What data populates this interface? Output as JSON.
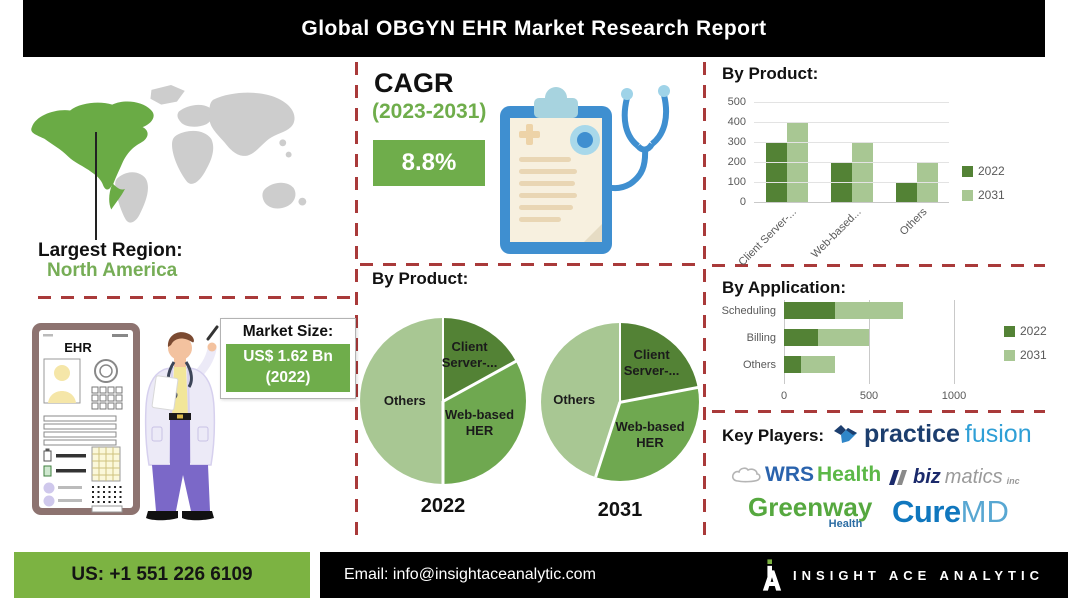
{
  "header": {
    "title": "Global OBGYN EHR Market Research Report"
  },
  "largest_region": {
    "label": "Largest Region:",
    "value": "North America"
  },
  "cagr": {
    "label": "CAGR",
    "period": "(2023-2031)",
    "value": "8.8%"
  },
  "market_size": {
    "label": "Market Size:",
    "line1": "US$ 1.62 Bn",
    "line2": "(2022)"
  },
  "device": {
    "screen_title": "EHR"
  },
  "key_players": {
    "label": "Key Players:",
    "practice_fusion": {
      "part1": "practice",
      "part2": "fusion"
    },
    "wrs_health": {
      "part1": "WRS",
      "part2": "Health"
    },
    "bizmatics": {
      "part1": "biz",
      "part2": "matics",
      "part3": "inc"
    },
    "greenway": {
      "part1": "Greenway",
      "part2": "Health"
    },
    "curemd": {
      "part1": "Cure",
      "part2": "MD"
    }
  },
  "footer": {
    "phone": "US: +1 551 226 6109",
    "email": "Email: info@insightaceanalytic.com",
    "brand": "INSIGHT ACE ANALYTIC"
  },
  "colors": {
    "green_2022": "#538235",
    "green_2031": "#a8c793",
    "green_mid": "#6fa850",
    "accent_green": "#6fad4b",
    "footer_green": "#7cb342",
    "map_green": "#6aab45",
    "dashed_red": "#a93a3a"
  },
  "chart_data": [
    {
      "type": "bar",
      "title": "By Product:",
      "categories": [
        "Client Server-...",
        "Web-based...",
        "Others"
      ],
      "series": [
        {
          "name": "2022",
          "values": [
            300,
            200,
            100
          ],
          "color": "#538235"
        },
        {
          "name": "2031",
          "values": [
            400,
            300,
            200
          ],
          "color": "#a8c793"
        }
      ],
      "ylim": [
        0,
        500
      ],
      "yticks": [
        0,
        100,
        200,
        300,
        400,
        500
      ],
      "grid": true,
      "legend_position": "right"
    },
    {
      "type": "pie",
      "title": "By Product:",
      "pies": [
        {
          "year": "2022",
          "slices": [
            {
              "label": "Client Server-...",
              "pct": 17,
              "color": "#538235"
            },
            {
              "label": "Web-based HER",
              "pct": 33,
              "color": "#6fa850"
            },
            {
              "label": "Others",
              "pct": 50,
              "color": "#a8c793"
            }
          ]
        },
        {
          "year": "2031",
          "slices": [
            {
              "label": "Client Server-...",
              "pct": 22,
              "color": "#538235"
            },
            {
              "label": "Web-based HER",
              "pct": 33,
              "color": "#6fa850"
            },
            {
              "label": "Others",
              "pct": 45,
              "color": "#a8c793"
            }
          ]
        }
      ]
    },
    {
      "type": "bar-horizontal-stacked",
      "title": "By Application:",
      "categories": [
        "Scheduling",
        "Billing",
        "Others"
      ],
      "series": [
        {
          "name": "2022",
          "values": [
            300,
            200,
            100
          ],
          "color": "#538235"
        },
        {
          "name": "2031",
          "values": [
            400,
            300,
            200
          ],
          "color": "#a8c793"
        }
      ],
      "xlim": [
        0,
        1000
      ],
      "xticks": [
        0,
        500,
        1000
      ],
      "legend_position": "right"
    }
  ]
}
